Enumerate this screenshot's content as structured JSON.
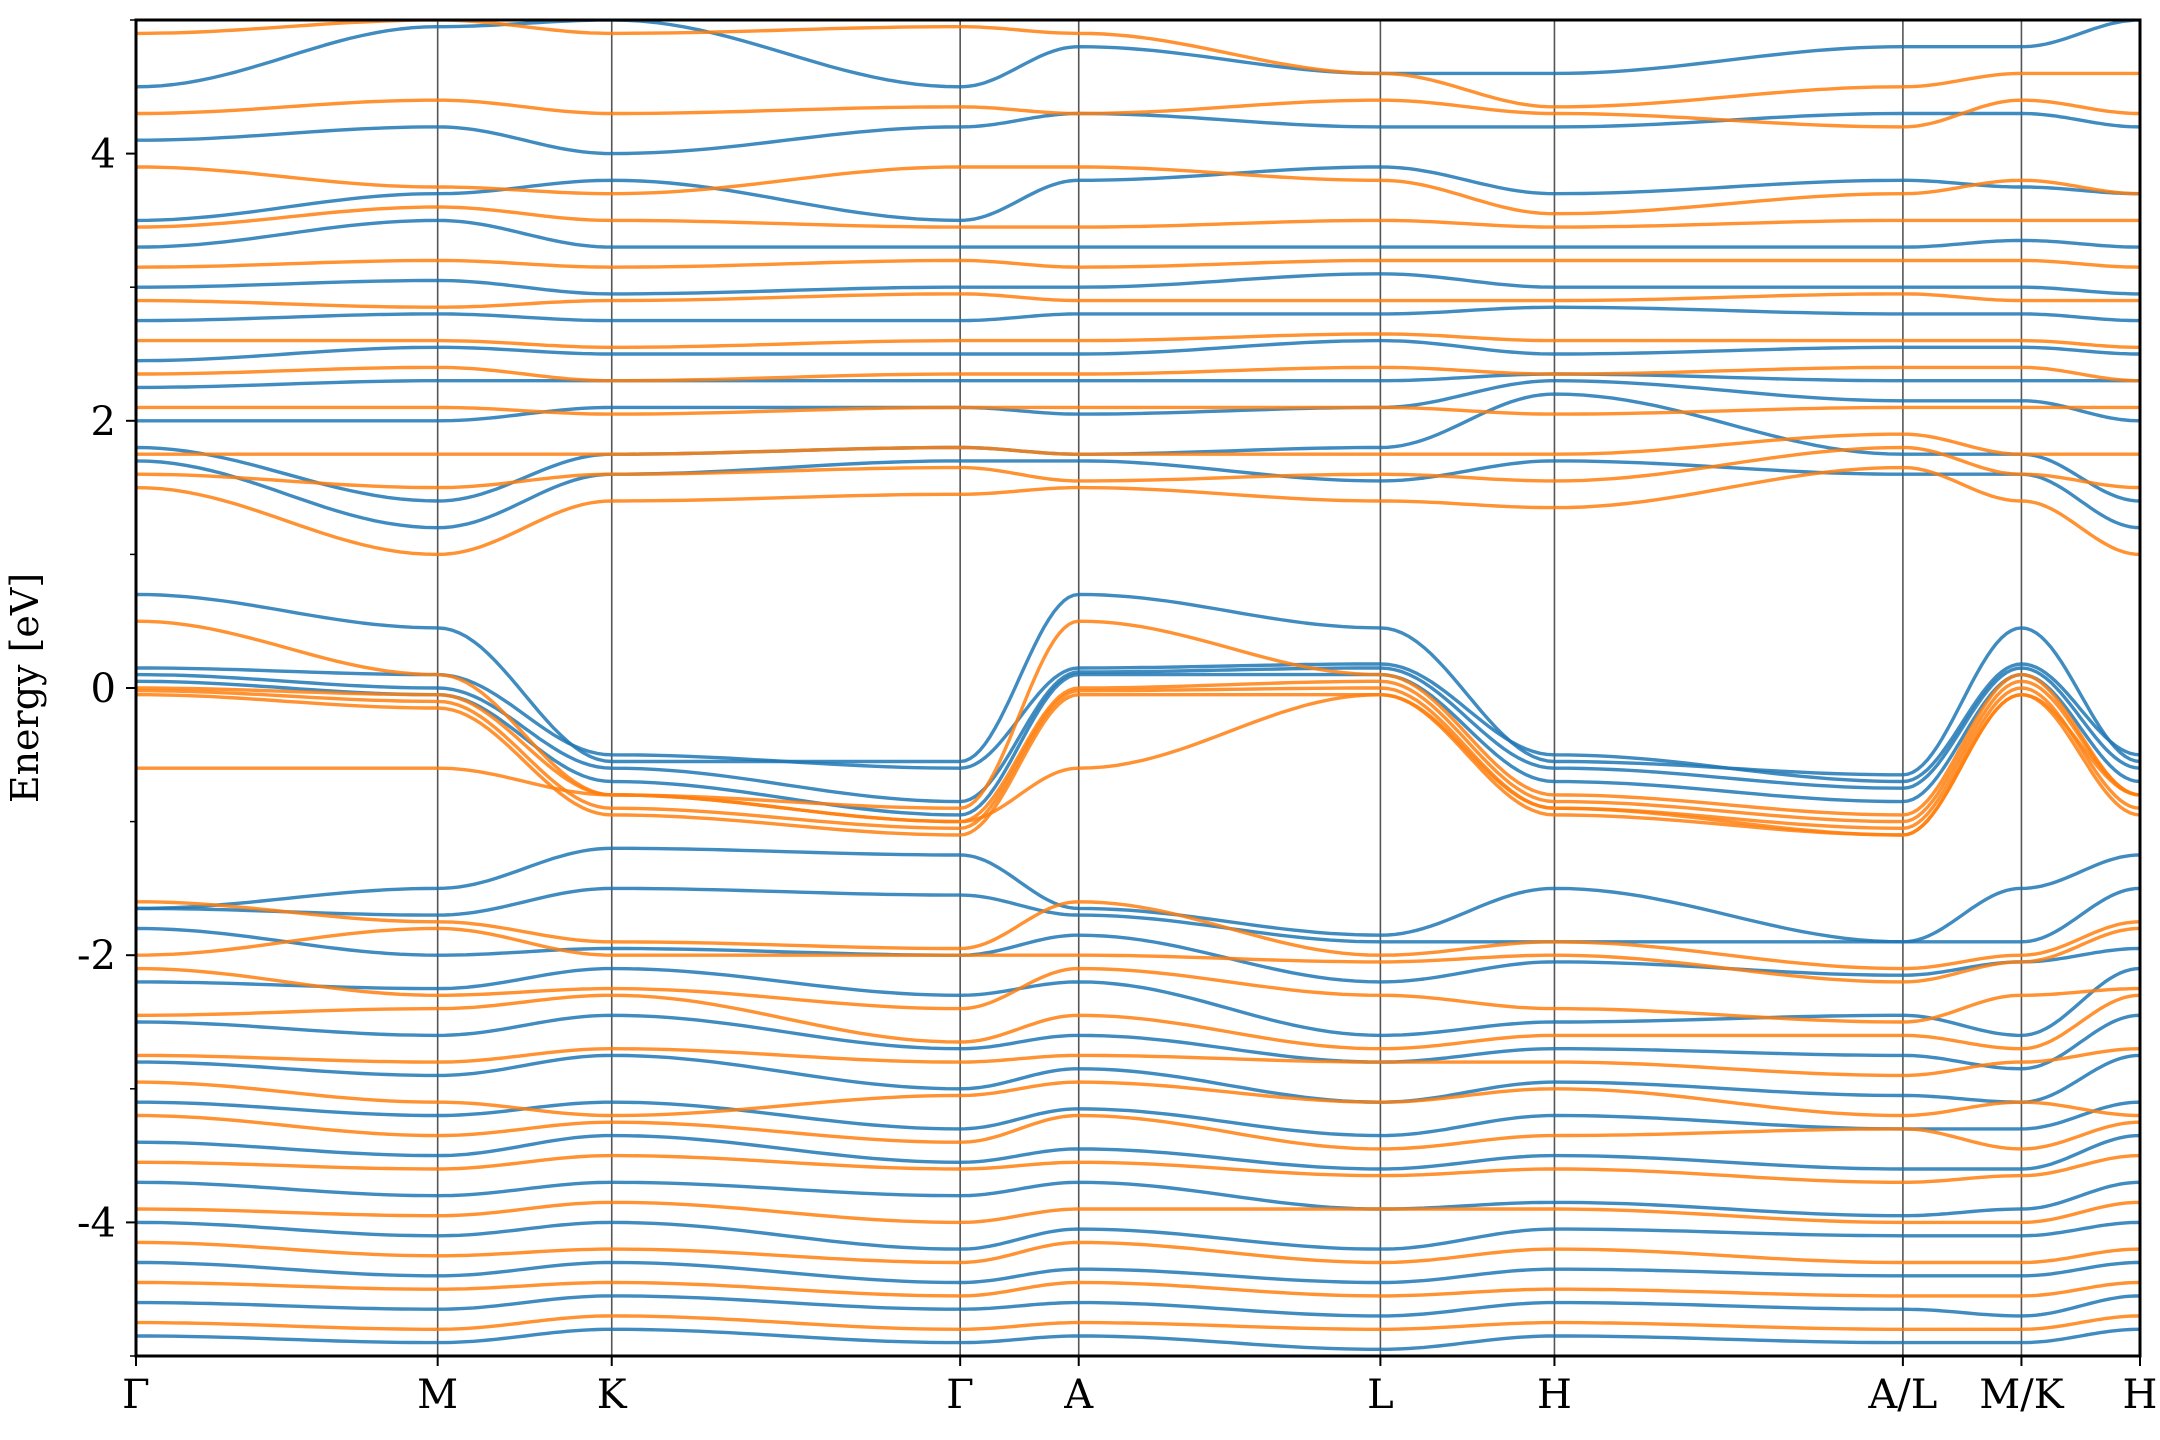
{
  "chart_data": {
    "type": "line",
    "title": "",
    "xlabel": "",
    "ylabel": "Energy [eV]",
    "ylim": [
      -5,
      5
    ],
    "y_ticks": [
      -4,
      -2,
      0,
      2,
      4
    ],
    "y_tick_labels": [
      "-4",
      "-2",
      "0",
      "2",
      "4"
    ],
    "y_minor_ticks": [
      -5,
      -3,
      -1,
      1,
      3,
      5
    ],
    "kpath": [
      {
        "label": "Γ",
        "x": 0.0
      },
      {
        "label": "M",
        "x": 1.0
      },
      {
        "label": "K",
        "x": 1.577
      },
      {
        "label": "Γ",
        "x": 2.732
      },
      {
        "label": "A",
        "x": 3.125
      },
      {
        "label": "L",
        "x": 4.125
      },
      {
        "label": "H",
        "x": 4.702
      },
      {
        "label": "A/L",
        "x": 5.857
      },
      {
        "label": "M/K",
        "x": 6.25
      },
      {
        "label": "H",
        "x": 6.643
      }
    ],
    "grid": "vertical lines at high-symmetry points",
    "legend": "none",
    "colors": {
      "series_a": "#1f77b4",
      "series_b": "#ff7f0e",
      "guide": "#555555"
    },
    "series": [
      {
        "color": "#1f77b4",
        "bands": [
          [
            0.7,
            0.45,
            -0.55,
            -0.55,
            0.7,
            0.45,
            -0.55,
            -0.65,
            0.45,
            -0.55,
            -0.6
          ],
          [
            0.15,
            0.1,
            -0.5,
            -0.6,
            0.15,
            0.18,
            -0.5,
            -0.7,
            0.18,
            -0.5,
            -0.65
          ],
          [
            0.1,
            0.0,
            -0.6,
            -0.85,
            0.12,
            0.15,
            -0.6,
            -0.75,
            0.15,
            -0.6,
            -0.75
          ],
          [
            0.05,
            -0.05,
            -0.7,
            -0.95,
            0.1,
            0.1,
            -0.7,
            -0.85,
            0.1,
            -0.7,
            -0.85
          ],
          [
            -1.65,
            -1.5,
            -1.2,
            -1.25,
            -1.65,
            -1.85,
            -1.5,
            -1.9,
            -1.5,
            -1.25,
            -1.3
          ],
          [
            -1.65,
            -1.7,
            -1.5,
            -1.55,
            -1.7,
            -1.9,
            -1.9,
            -1.9,
            -1.9,
            -1.5,
            -1.9
          ],
          [
            -1.8,
            -2.0,
            -1.95,
            -2.0,
            -1.85,
            -2.2,
            -2.05,
            -2.15,
            -2.05,
            -1.95,
            -2.1
          ],
          [
            -2.2,
            -2.25,
            -2.1,
            -2.3,
            -2.2,
            -2.6,
            -2.5,
            -2.45,
            -2.6,
            -2.1,
            -2.3
          ],
          [
            -2.5,
            -2.6,
            -2.45,
            -2.7,
            -2.6,
            -2.8,
            -2.7,
            -2.75,
            -2.85,
            -2.45,
            -2.6
          ],
          [
            -2.8,
            -2.9,
            -2.75,
            -3.0,
            -2.85,
            -3.1,
            -2.95,
            -3.05,
            -3.1,
            -2.75,
            -3.0
          ],
          [
            -3.1,
            -3.2,
            -3.1,
            -3.3,
            -3.15,
            -3.35,
            -3.2,
            -3.3,
            -3.3,
            -3.1,
            -3.25
          ],
          [
            -3.4,
            -3.5,
            -3.35,
            -3.55,
            -3.45,
            -3.6,
            -3.5,
            -3.6,
            -3.6,
            -3.35,
            -3.5
          ],
          [
            -3.7,
            -3.8,
            -3.7,
            -3.8,
            -3.7,
            -3.9,
            -3.85,
            -3.95,
            -3.9,
            -3.7,
            -3.8
          ],
          [
            -4.0,
            -4.1,
            -4.0,
            -4.2,
            -4.05,
            -4.2,
            -4.05,
            -4.1,
            -4.1,
            -4.0,
            -4.1
          ],
          [
            -4.3,
            -4.4,
            -4.3,
            -4.45,
            -4.35,
            -4.45,
            -4.35,
            -4.4,
            -4.4,
            -4.3,
            -4.4
          ],
          [
            -4.6,
            -4.65,
            -4.55,
            -4.65,
            -4.6,
            -4.7,
            -4.6,
            -4.65,
            -4.7,
            -4.55,
            -4.65
          ],
          [
            -4.85,
            -4.9,
            -4.8,
            -4.9,
            -4.85,
            -4.95,
            -4.85,
            -4.9,
            -4.9,
            -4.8,
            -4.9
          ],
          [
            1.7,
            1.2,
            1.6,
            1.7,
            1.7,
            1.55,
            1.7,
            1.6,
            1.6,
            1.2,
            1.6
          ],
          [
            1.8,
            1.4,
            1.75,
            1.8,
            1.75,
            1.8,
            2.2,
            1.75,
            1.75,
            1.4,
            1.7
          ],
          [
            2.0,
            2.0,
            2.1,
            2.1,
            2.05,
            2.1,
            2.3,
            2.15,
            2.15,
            2.0,
            2.05
          ],
          [
            2.25,
            2.3,
            2.3,
            2.3,
            2.3,
            2.3,
            2.35,
            2.3,
            2.3,
            2.3,
            2.3
          ],
          [
            2.45,
            2.55,
            2.5,
            2.5,
            2.5,
            2.6,
            2.5,
            2.55,
            2.55,
            2.5,
            2.5
          ],
          [
            2.75,
            2.8,
            2.75,
            2.75,
            2.8,
            2.8,
            2.85,
            2.8,
            2.8,
            2.75,
            2.8
          ],
          [
            3.0,
            3.05,
            2.95,
            3.0,
            3.0,
            3.1,
            3.0,
            3.0,
            3.0,
            2.95,
            3.0
          ],
          [
            3.3,
            3.5,
            3.3,
            3.3,
            3.3,
            3.3,
            3.3,
            3.3,
            3.35,
            3.3,
            3.3
          ],
          [
            3.5,
            3.7,
            3.8,
            3.5,
            3.8,
            3.9,
            3.7,
            3.8,
            3.75,
            3.7,
            3.7
          ],
          [
            4.1,
            4.2,
            4.0,
            4.2,
            4.3,
            4.2,
            4.2,
            4.3,
            4.3,
            4.2,
            4.2
          ],
          [
            4.5,
            4.95,
            5.0,
            4.5,
            4.8,
            4.6,
            4.6,
            4.8,
            4.8,
            5.0,
            4.6
          ]
        ]
      },
      {
        "color": "#ff7f0e",
        "bands": [
          [
            0.5,
            0.1,
            -0.8,
            -0.9,
            0.5,
            0.1,
            -0.8,
            -0.95,
            0.1,
            -0.8,
            -0.9
          ],
          [
            0.0,
            -0.05,
            -0.8,
            -1.0,
            0.0,
            0.05,
            -0.85,
            -1.0,
            0.05,
            -0.8,
            -0.95
          ],
          [
            -0.02,
            -0.1,
            -0.9,
            -1.05,
            -0.02,
            0.0,
            -0.9,
            -1.05,
            0.0,
            -0.9,
            -1.0
          ],
          [
            -0.05,
            -0.15,
            -0.95,
            -1.1,
            -0.05,
            -0.05,
            -0.95,
            -1.1,
            -0.05,
            -0.95,
            -1.05
          ],
          [
            -0.6,
            -0.6,
            -0.8,
            -1.0,
            -0.6,
            -0.05,
            -0.9,
            -1.1,
            -0.05,
            -0.8,
            -1.0
          ],
          [
            -1.6,
            -1.75,
            -1.9,
            -1.95,
            -1.6,
            -2.0,
            -1.9,
            -2.1,
            -2.0,
            -1.75,
            -2.0
          ],
          [
            -2.0,
            -1.8,
            -2.0,
            -2.0,
            -2.0,
            -2.05,
            -2.0,
            -2.2,
            -2.05,
            -1.8,
            -2.1
          ],
          [
            -2.1,
            -2.3,
            -2.25,
            -2.4,
            -2.1,
            -2.3,
            -2.4,
            -2.5,
            -2.3,
            -2.25,
            -2.4
          ],
          [
            -2.45,
            -2.4,
            -2.3,
            -2.65,
            -2.45,
            -2.7,
            -2.6,
            -2.6,
            -2.7,
            -2.3,
            -2.6
          ],
          [
            -2.75,
            -2.8,
            -2.7,
            -2.8,
            -2.75,
            -2.8,
            -2.8,
            -2.9,
            -2.8,
            -2.7,
            -2.75
          ],
          [
            -2.95,
            -3.1,
            -3.2,
            -3.05,
            -2.95,
            -3.1,
            -3.0,
            -3.2,
            -3.1,
            -3.2,
            -3.2
          ],
          [
            -3.2,
            -3.35,
            -3.25,
            -3.4,
            -3.2,
            -3.45,
            -3.35,
            -3.3,
            -3.45,
            -3.25,
            -3.3
          ],
          [
            -3.55,
            -3.6,
            -3.5,
            -3.6,
            -3.55,
            -3.65,
            -3.6,
            -3.7,
            -3.65,
            -3.5,
            -3.6
          ],
          [
            -3.9,
            -3.95,
            -3.85,
            -4.0,
            -3.9,
            -3.9,
            -3.9,
            -4.0,
            -4.0,
            -3.85,
            -3.95
          ],
          [
            -4.15,
            -4.25,
            -4.2,
            -4.3,
            -4.15,
            -4.3,
            -4.2,
            -4.3,
            -4.3,
            -4.2,
            -4.25
          ],
          [
            -4.45,
            -4.5,
            -4.45,
            -4.55,
            -4.45,
            -4.55,
            -4.5,
            -4.55,
            -4.55,
            -4.45,
            -4.5
          ],
          [
            -4.75,
            -4.8,
            -4.7,
            -4.8,
            -4.75,
            -4.8,
            -4.75,
            -4.8,
            -4.8,
            -4.7,
            -4.8
          ],
          [
            1.5,
            1.0,
            1.4,
            1.45,
            1.5,
            1.4,
            1.35,
            1.65,
            1.4,
            1.0,
            1.65
          ],
          [
            1.6,
            1.5,
            1.6,
            1.65,
            1.55,
            1.6,
            1.55,
            1.8,
            1.6,
            1.5,
            1.75
          ],
          [
            1.75,
            1.75,
            1.75,
            1.8,
            1.75,
            1.75,
            1.75,
            1.9,
            1.75,
            1.75,
            1.85
          ],
          [
            2.1,
            2.1,
            2.05,
            2.1,
            2.1,
            2.1,
            2.05,
            2.1,
            2.1,
            2.1,
            2.1
          ],
          [
            2.35,
            2.4,
            2.3,
            2.35,
            2.35,
            2.4,
            2.35,
            2.4,
            2.4,
            2.3,
            2.35
          ],
          [
            2.6,
            2.6,
            2.55,
            2.6,
            2.6,
            2.65,
            2.6,
            2.6,
            2.6,
            2.55,
            2.6
          ],
          [
            2.9,
            2.85,
            2.9,
            2.95,
            2.9,
            2.9,
            2.9,
            2.95,
            2.9,
            2.9,
            2.95
          ],
          [
            3.15,
            3.2,
            3.15,
            3.2,
            3.15,
            3.2,
            3.2,
            3.2,
            3.2,
            3.15,
            3.2
          ],
          [
            3.45,
            3.6,
            3.5,
            3.45,
            3.45,
            3.5,
            3.45,
            3.5,
            3.5,
            3.5,
            3.45
          ],
          [
            3.9,
            3.75,
            3.7,
            3.9,
            3.9,
            3.8,
            3.55,
            3.7,
            3.8,
            3.7,
            3.75
          ],
          [
            4.3,
            4.4,
            4.3,
            4.35,
            4.3,
            4.4,
            4.3,
            4.2,
            4.4,
            4.3,
            4.25
          ],
          [
            4.9,
            5.0,
            4.9,
            4.95,
            4.9,
            4.6,
            4.35,
            4.5,
            4.6,
            4.6,
            4.3
          ]
        ]
      }
    ]
  }
}
